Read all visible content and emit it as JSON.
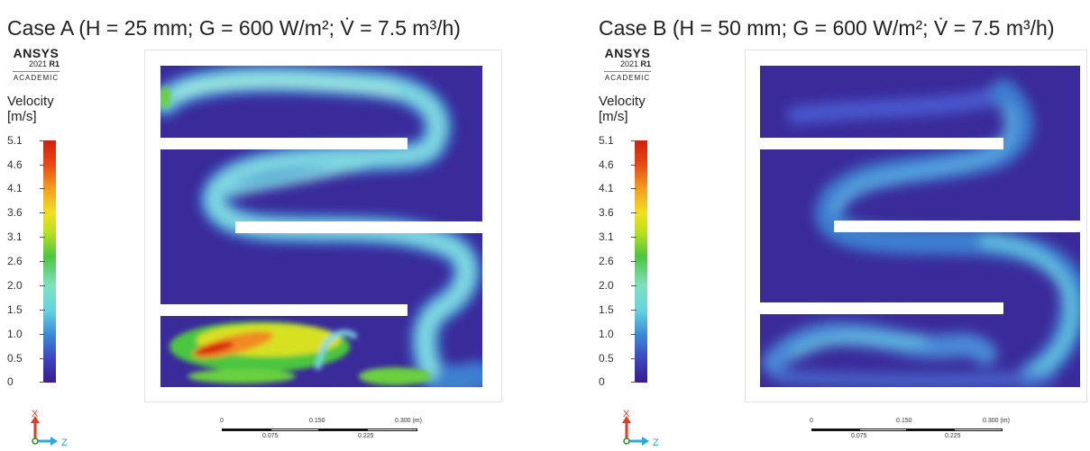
{
  "panels": [
    {
      "title": "Case A (H = 25 mm; G = 600 W/m²; V̇ = 7.5 m³/h)",
      "logo": {
        "brand": "ANSYS",
        "release_year": "2021",
        "release_tag": "R1",
        "edition": "ACADEMIC"
      },
      "legend": {
        "title_line1": "Velocity",
        "title_line2": "[m/s]",
        "ticks": [
          "5.1",
          "4.6",
          "4.1",
          "3.6",
          "3.1",
          "2.6",
          "2.0",
          "1.5",
          "1.0",
          "0.5",
          "0"
        ]
      },
      "axis_labels": {
        "vertical": "X",
        "horizontal": "Z"
      },
      "scale": {
        "top_labels": [
          "0",
          "0.150",
          "0.300 (m)"
        ],
        "bottom_labels": [
          "0.075",
          "0.225"
        ]
      }
    },
    {
      "title": "Case B (H = 50 mm; G = 600 W/m²; V̇ = 7.5 m³/h)",
      "logo": {
        "brand": "ANSYS",
        "release_year": "2021",
        "release_tag": "R1",
        "edition": "ACADEMIC"
      },
      "legend": {
        "title_line1": "Velocity",
        "title_line2": "[m/s]",
        "ticks": [
          "5.1",
          "4.6",
          "4.1",
          "3.6",
          "3.1",
          "2.6",
          "2.0",
          "1.5",
          "1.0",
          "0.5",
          "0"
        ]
      },
      "axis_labels": {
        "vertical": "X",
        "horizontal": "Z"
      },
      "scale": {
        "top_labels": [
          "0",
          "0.150",
          "0.300 (m)"
        ],
        "bottom_labels": [
          "0.075",
          "0.225"
        ]
      }
    }
  ],
  "colors": {
    "low": "#3a2a9a",
    "mid_low": "#3d7fd0",
    "mid": "#7fe0d8",
    "mid_high": "#6bd040",
    "high": "#e8d820",
    "max": "#d82010",
    "axis_x": "#e03a20",
    "axis_z": "#2aa8e0"
  }
}
